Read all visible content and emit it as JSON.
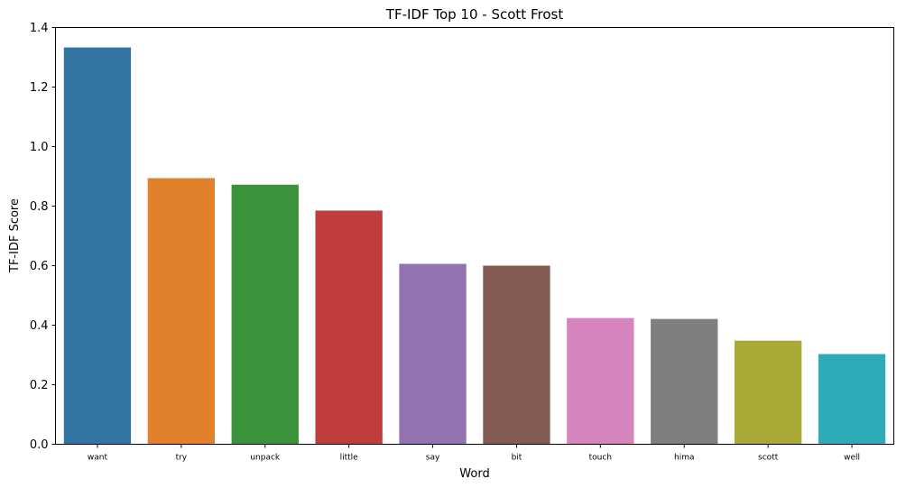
{
  "chart_data": {
    "type": "bar",
    "title": "TF-IDF Top 10 - Scott Frost",
    "xlabel": "Word",
    "ylabel": "TF-IDF Score",
    "categories": [
      "want",
      "try",
      "unpack",
      "little",
      "say",
      "bit",
      "touch",
      "hima",
      "scott",
      "well"
    ],
    "values": [
      1.333,
      0.894,
      0.872,
      0.785,
      0.606,
      0.6,
      0.424,
      0.421,
      0.348,
      0.303
    ],
    "colors": [
      "#3274a1",
      "#e1812c",
      "#3a923a",
      "#c03d3e",
      "#9372b2",
      "#845b53",
      "#d684bd",
      "#7f7f7f",
      "#a9aa35",
      "#2eabb8"
    ],
    "ylim": [
      0,
      1.4
    ],
    "yticks": [
      "0.0",
      "0.2",
      "0.4",
      "0.6",
      "0.8",
      "1.0",
      "1.2",
      "1.4"
    ],
    "grid": false,
    "legend": "none"
  }
}
